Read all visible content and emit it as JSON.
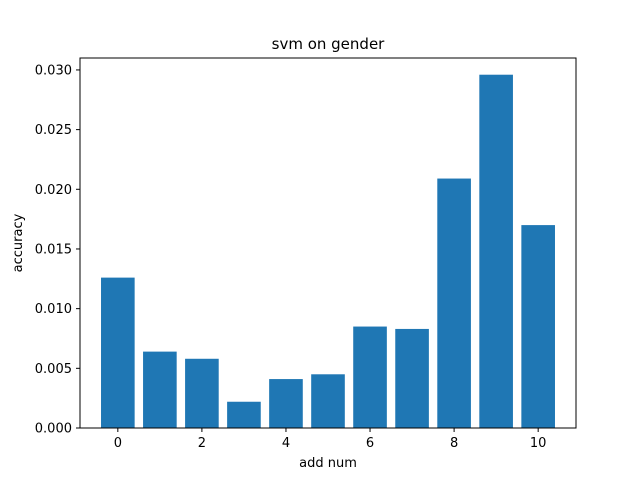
{
  "chart_data": {
    "type": "bar",
    "title": "svm on gender",
    "xlabel": "add num",
    "ylabel": "accuracy",
    "x": [
      0,
      1,
      2,
      3,
      4,
      5,
      6,
      7,
      8,
      9,
      10
    ],
    "values": [
      0.0126,
      0.0064,
      0.0058,
      0.0022,
      0.0041,
      0.0045,
      0.0085,
      0.0083,
      0.0209,
      0.0296,
      0.017
    ],
    "xlim": [
      -0.9,
      10.9
    ],
    "ylim": [
      0,
      0.031
    ],
    "xticks": [
      0,
      2,
      4,
      6,
      8,
      10
    ],
    "xtick_labels": [
      "0",
      "2",
      "4",
      "6",
      "8",
      "10"
    ],
    "yticks": [
      0,
      0.005,
      0.01,
      0.015,
      0.02,
      0.025,
      0.03
    ],
    "ytick_labels": [
      "0.000",
      "0.005",
      "0.010",
      "0.015",
      "0.020",
      "0.025",
      "0.030"
    ],
    "bar_color": "#1f77b4",
    "grid": false,
    "legend": false
  }
}
